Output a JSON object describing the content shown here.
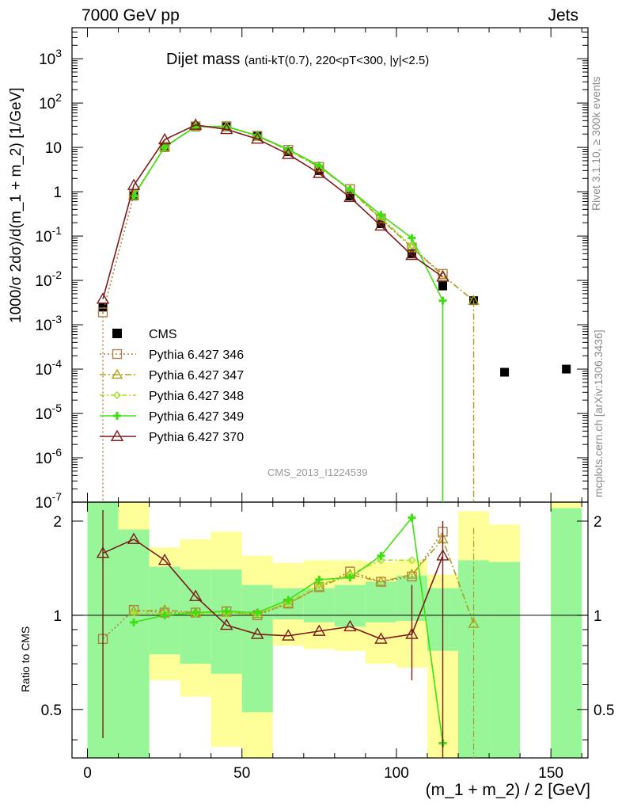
{
  "header": {
    "left": "7000 GeV pp",
    "right": "Jets"
  },
  "side_text": {
    "rivet": "Rivet 3.1.10, ≥ 300k events",
    "mcplots": "mcplots.cern.ch [arXiv:1306.3436]"
  },
  "chart_data": {
    "type": "line",
    "title": "Dijet mass",
    "subtitle": "(anti-kT(0.7), 220<pT<300, |y|<2.5)",
    "analysis_tag": "CMS_2013_I1224539",
    "xlabel": "(m_1 + m_2) / 2 [GeV]",
    "ylabel": "1000/σ 2dσ)/d(m_1 + m_2) [1/GeV]",
    "ratio_ylabel": "Ratio to CMS",
    "xlim": [
      -5,
      162
    ],
    "ylim": [
      1e-07,
      5000
    ],
    "yscale": "log",
    "ratio_ylim": [
      0.35,
      2.3
    ],
    "x_ticks": [
      "0",
      "50",
      "100",
      "150"
    ],
    "main_y_ticks": [
      "10^-7",
      "10^-6",
      "10^-5",
      "10^-4",
      "10^-3",
      "10^-2",
      "10^-1",
      "1",
      "10",
      "10^2",
      "10^3"
    ],
    "ratio_y_ticks": [
      "0.5",
      "1",
      "2"
    ],
    "legend_position": "left",
    "bins": [
      [
        0,
        10
      ],
      [
        10,
        20
      ],
      [
        20,
        30
      ],
      [
        30,
        40
      ],
      [
        40,
        50
      ],
      [
        50,
        60
      ],
      [
        60,
        70
      ],
      [
        70,
        80
      ],
      [
        80,
        90
      ],
      [
        90,
        100
      ],
      [
        100,
        110
      ],
      [
        110,
        120
      ],
      [
        120,
        130
      ],
      [
        130,
        140
      ],
      [
        140,
        150
      ],
      [
        150,
        160
      ]
    ],
    "data": {
      "name": "CMS",
      "x": [
        5,
        15,
        25,
        35,
        45,
        55,
        65,
        75,
        85,
        95,
        105,
        115,
        125,
        135,
        155
      ],
      "y": [
        0.0025,
        0.8,
        10,
        29,
        29,
        18,
        8,
        3,
        0.8,
        0.19,
        0.04,
        0.0075,
        0.0035,
        8.5e-05,
        0.0001
      ]
    },
    "uncertainty_band": {
      "x": [
        [
          0,
          10
        ],
        [
          10,
          20
        ],
        [
          20,
          30
        ],
        [
          30,
          40
        ],
        [
          40,
          50
        ],
        [
          50,
          60
        ],
        [
          60,
          70
        ],
        [
          70,
          80
        ],
        [
          80,
          90
        ],
        [
          90,
          100
        ],
        [
          100,
          110
        ],
        [
          110,
          120
        ],
        [
          120,
          130
        ],
        [
          130,
          140
        ],
        [
          150,
          160
        ]
      ],
      "yellow_lo": [
        0.35,
        0.35,
        0.62,
        0.55,
        0.38,
        0.33,
        0.8,
        0.78,
        0.77,
        0.7,
        0.68,
        0.35,
        0.35,
        0.66,
        0.35
      ],
      "yellow_hi": [
        2.3,
        2.3,
        1.65,
        1.75,
        1.85,
        1.55,
        1.47,
        1.5,
        1.5,
        1.48,
        1.5,
        1.35,
        2.15,
        1.95,
        2.3
      ],
      "green_lo": [
        0.35,
        0.35,
        0.75,
        0.7,
        0.65,
        0.49,
        0.97,
        0.95,
        0.92,
        0.95,
        0.96,
        0.77,
        0.35,
        0.35,
        0.35
      ],
      "green_hi": [
        2.3,
        1.88,
        1.43,
        1.4,
        1.4,
        1.25,
        1.22,
        1.22,
        1.25,
        1.28,
        1.34,
        1.22,
        1.5,
        1.48,
        2.2
      ]
    },
    "series": [
      {
        "name": "Pythia 6.427 346",
        "color": "#b07f43",
        "marker": "square",
        "dash": "2,3",
        "x": [
          5,
          15,
          25,
          35,
          45,
          55,
          65,
          75,
          85,
          95,
          105,
          115
        ],
        "y": [
          0.0019,
          0.84,
          10.2,
          29.8,
          30,
          18.2,
          8.8,
          3.6,
          1.15,
          0.25,
          0.055,
          0.014
        ],
        "ratio": [
          0.84,
          1.04,
          1.02,
          1.02,
          1.03,
          1.0,
          1.09,
          1.23,
          1.38,
          1.28,
          1.33,
          1.85
        ]
      },
      {
        "name": "Pythia 6.427 347",
        "color": "#a9a11d",
        "marker": "triangle",
        "dash": "8,3,2,3",
        "x": [
          15,
          25,
          35,
          45,
          55,
          65,
          75,
          85,
          95,
          105,
          115,
          125
        ],
        "y": [
          0.83,
          10.3,
          29.5,
          29.2,
          18,
          8.6,
          3.6,
          1.1,
          0.24,
          0.055,
          0.013,
          0.0035
        ],
        "ratio": [
          1.03,
          1.04,
          1.02,
          1.02,
          1.01,
          1.09,
          1.23,
          1.35,
          1.28,
          1.35,
          1.75,
          0.94
        ]
      },
      {
        "name": "Pythia 6.427 348",
        "color": "#a4e01e",
        "marker": "diamond",
        "dash": "6,3,2,3",
        "x": [
          15,
          25,
          35,
          45,
          55,
          65,
          75,
          85,
          95,
          105
        ],
        "y": [
          0.82,
          10.1,
          29.3,
          29.6,
          18.4,
          8.8,
          3.7,
          1.1,
          0.26,
          0.06
        ],
        "ratio": [
          1.02,
          1.01,
          1.01,
          1.02,
          1.01,
          1.1,
          1.25,
          1.35,
          1.5,
          1.5
        ]
      },
      {
        "name": "Pythia 6.427 349",
        "color": "#3ee011",
        "marker": "cross",
        "dash": "",
        "x": [
          15,
          25,
          35,
          45,
          55,
          65,
          75,
          85,
          95,
          105,
          115
        ],
        "y": [
          0.8,
          10.2,
          29.5,
          29.5,
          18.5,
          9,
          3.9,
          1.1,
          0.3,
          0.09,
          0.0035
        ],
        "ratio": [
          0.95,
          1.0,
          1.02,
          1.03,
          1.02,
          1.12,
          1.3,
          1.32,
          1.55,
          2.05,
          0.39
        ]
      },
      {
        "name": "Pythia 6.427 370",
        "color": "#7d1a1a",
        "marker": "triangle-open",
        "dash": "",
        "x": [
          5,
          15,
          25,
          35,
          45,
          55,
          65,
          75,
          85,
          95,
          105,
          115
        ],
        "y": [
          0.0038,
          1.4,
          15,
          32,
          25.5,
          15.5,
          7,
          2.6,
          0.75,
          0.17,
          0.037,
          0.012
        ],
        "ratio": [
          1.58,
          1.75,
          1.5,
          1.15,
          0.93,
          0.87,
          0.86,
          0.89,
          0.92,
          0.84,
          0.87,
          1.55
        ]
      }
    ]
  }
}
